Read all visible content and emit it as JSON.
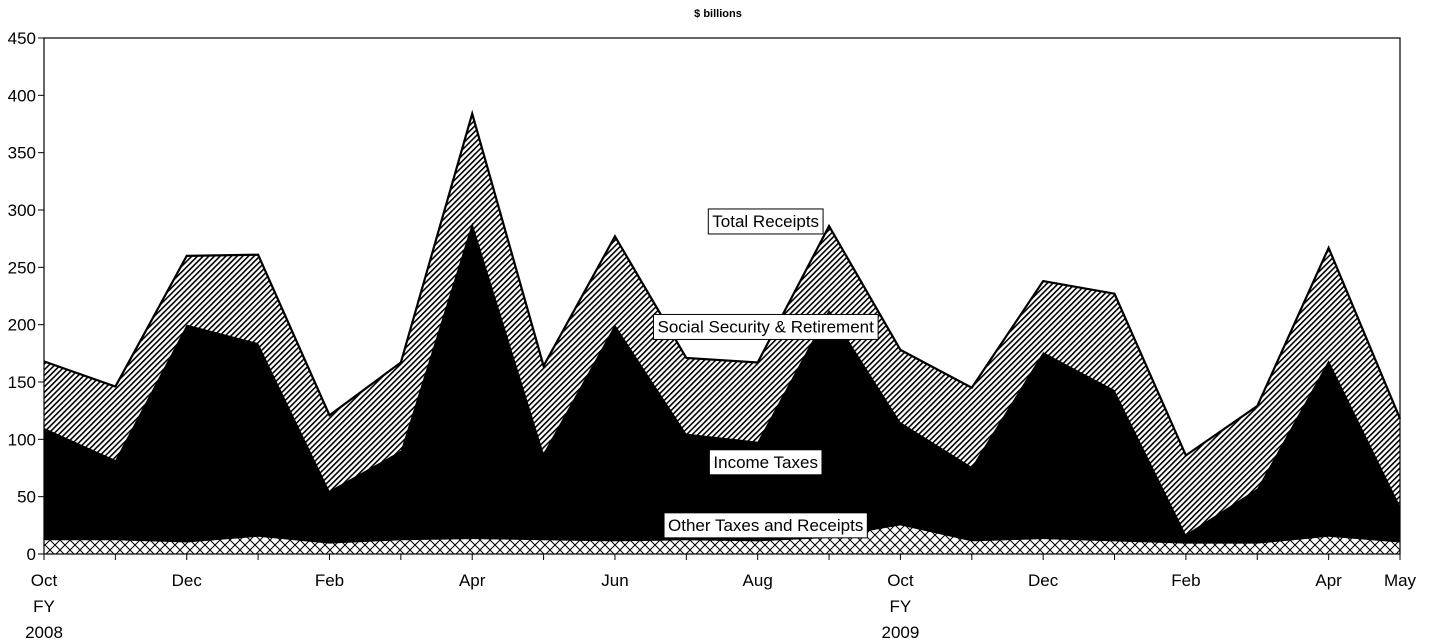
{
  "chart_data": {
    "type": "area",
    "title": "$ billions",
    "ylim": [
      0,
      450
    ],
    "yticks": [
      0,
      50,
      100,
      150,
      200,
      250,
      300,
      350,
      400,
      450
    ],
    "x_labels": [
      {
        "index": 0,
        "lines": [
          "Oct",
          "FY",
          "2008"
        ]
      },
      {
        "index": 2,
        "lines": [
          "Dec"
        ]
      },
      {
        "index": 4,
        "lines": [
          "Feb"
        ]
      },
      {
        "index": 6,
        "lines": [
          "Apr"
        ]
      },
      {
        "index": 8,
        "lines": [
          "Jun"
        ]
      },
      {
        "index": 10,
        "lines": [
          "Aug"
        ]
      },
      {
        "index": 12,
        "lines": [
          "Oct",
          "FY",
          "2009"
        ]
      },
      {
        "index": 14,
        "lines": [
          "Dec"
        ]
      },
      {
        "index": 16,
        "lines": [
          "Feb"
        ]
      },
      {
        "index": 18,
        "lines": [
          "Apr"
        ]
      },
      {
        "index": 19,
        "lines": [
          "May"
        ]
      }
    ],
    "periods": 20,
    "grid": false,
    "series": [
      {
        "name": "Other Taxes and Receipts",
        "pattern": "crosshatch",
        "values": [
          12,
          12,
          10,
          15,
          9,
          12,
          13,
          12,
          11,
          12,
          11,
          14,
          25,
          11,
          13,
          11,
          9,
          9,
          15,
          10
        ]
      },
      {
        "name": "Income Taxes",
        "pattern": "solid-black",
        "values": [
          110,
          82,
          200,
          184,
          55,
          90,
          289,
          88,
          200,
          105,
          98,
          213,
          115,
          76,
          176,
          143,
          17,
          57,
          169,
          42
        ]
      },
      {
        "name": "Social Security & Retirement",
        "pattern": "diagonal",
        "values": [
          168,
          146,
          260,
          261,
          121,
          167,
          384,
          164,
          277,
          171,
          167,
          286,
          178,
          145,
          238,
          227,
          86,
          129,
          267,
          118
        ]
      },
      {
        "name": "Total Receipts",
        "pattern": "outline",
        "values": [
          168,
          146,
          260,
          261,
          121,
          167,
          384,
          164,
          277,
          171,
          167,
          286,
          178,
          145,
          238,
          227,
          86,
          129,
          267,
          118
        ]
      }
    ],
    "annotations": [
      {
        "text": "Total Receipts",
        "index": 10,
        "value": 290
      },
      {
        "text": "Social Security & Retirement",
        "index": 10,
        "value": 198
      },
      {
        "text": "Income Taxes",
        "index": 10,
        "value": 80
      },
      {
        "text": "Other Taxes and Receipts",
        "index": 10,
        "value": 25
      }
    ]
  }
}
